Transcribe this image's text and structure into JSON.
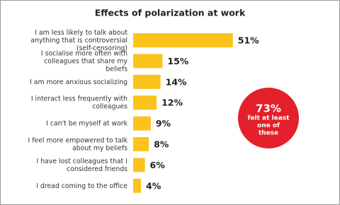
{
  "chart_data": {
    "type": "bar",
    "orientation": "horizontal",
    "title": "Effects of polarization at work",
    "categories": [
      "I am less likely to talk about anything that is controversial (self-censoring)",
      "I socialise more often with colleagues that share my beliefs",
      "I am more anxious socializing",
      "I interact less frequently with colleagues",
      "I can't be myself at work",
      "I feel more empowered to talk about my beliefs",
      "I have lost colleagues that I considered friends",
      "I dread coming to the office"
    ],
    "values": [
      51,
      15,
      14,
      12,
      9,
      8,
      6,
      4
    ],
    "value_labels": [
      "51%",
      "15%",
      "14%",
      "12%",
      "9%",
      "8%",
      "6%",
      "4%"
    ],
    "color": "#fbc31c",
    "annotation": {
      "value": "73%",
      "text": "felt at least one of these",
      "color": "#e3202b"
    }
  }
}
